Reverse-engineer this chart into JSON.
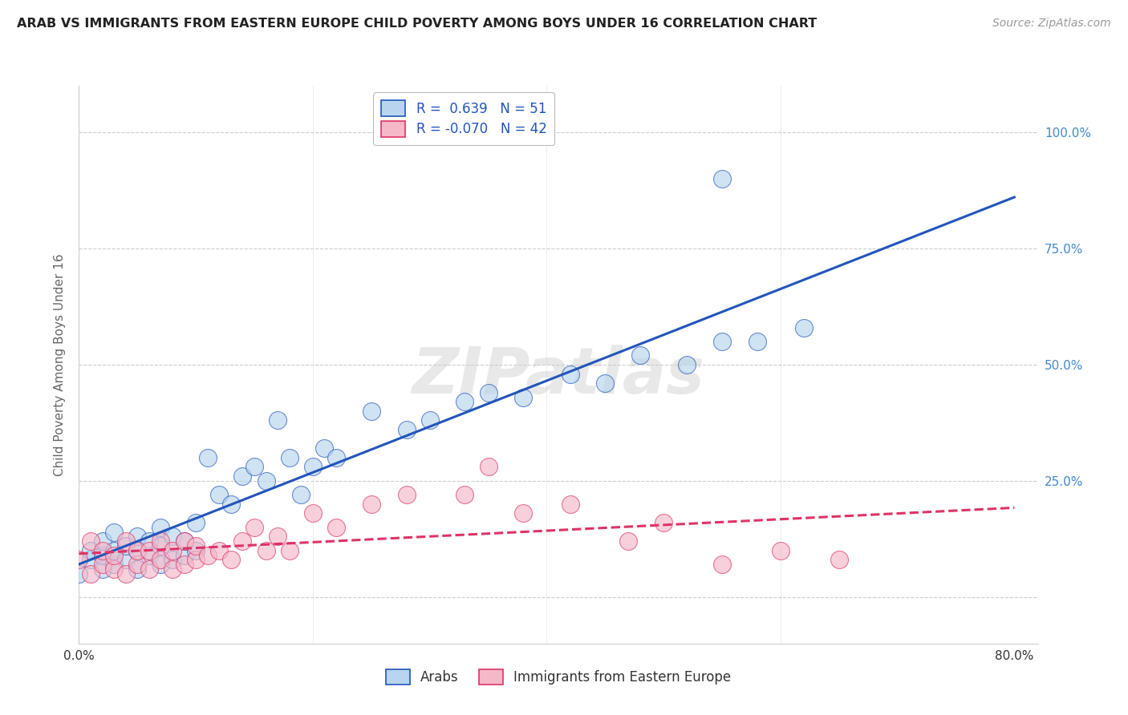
{
  "title": "ARAB VS IMMIGRANTS FROM EASTERN EUROPE CHILD POVERTY AMONG BOYS UNDER 16 CORRELATION CHART",
  "source": "Source: ZipAtlas.com",
  "ylabel": "Child Poverty Among Boys Under 16",
  "xlim": [
    0.0,
    0.82
  ],
  "ylim": [
    -0.1,
    1.1
  ],
  "xtick_positions": [
    0.0,
    0.2,
    0.4,
    0.6,
    0.8
  ],
  "xticklabels": [
    "0.0%",
    "",
    "",
    "",
    "80.0%"
  ],
  "ytick_positions": [
    0.0,
    0.25,
    0.5,
    0.75,
    1.0
  ],
  "ytick_labels": [
    "",
    "25.0%",
    "50.0%",
    "75.0%",
    "100.0%"
  ],
  "background_color": "#ffffff",
  "grid_color": "#c8c8c8",
  "watermark": "ZIPatlas",
  "series": [
    {
      "name": "Arabs",
      "R": 0.639,
      "N": 51,
      "color": "#b8d4ee",
      "line_color": "#2255bb",
      "line_style": "-",
      "x": [
        0.0,
        0.01,
        0.01,
        0.02,
        0.02,
        0.02,
        0.03,
        0.03,
        0.03,
        0.04,
        0.04,
        0.05,
        0.05,
        0.05,
        0.06,
        0.06,
        0.07,
        0.07,
        0.07,
        0.08,
        0.08,
        0.09,
        0.09,
        0.1,
        0.1,
        0.11,
        0.12,
        0.13,
        0.14,
        0.15,
        0.16,
        0.17,
        0.18,
        0.19,
        0.2,
        0.21,
        0.22,
        0.25,
        0.28,
        0.3,
        0.33,
        0.35,
        0.38,
        0.42,
        0.45,
        0.48,
        0.52,
        0.55,
        0.58,
        0.62,
        0.55
      ],
      "y": [
        0.05,
        0.08,
        0.1,
        0.06,
        0.09,
        0.12,
        0.07,
        0.1,
        0.14,
        0.08,
        0.11,
        0.06,
        0.1,
        0.13,
        0.09,
        0.12,
        0.07,
        0.11,
        0.15,
        0.08,
        0.13,
        0.09,
        0.12,
        0.1,
        0.16,
        0.3,
        0.22,
        0.2,
        0.26,
        0.28,
        0.25,
        0.38,
        0.3,
        0.22,
        0.28,
        0.32,
        0.3,
        0.4,
        0.36,
        0.38,
        0.42,
        0.44,
        0.43,
        0.48,
        0.46,
        0.52,
        0.5,
        0.55,
        0.55,
        0.58,
        0.9
      ]
    },
    {
      "name": "Immigrants from Eastern Europe",
      "R": -0.07,
      "N": 42,
      "color": "#f5b8c8",
      "line_color": "#dd3366",
      "line_style": "--",
      "x": [
        0.0,
        0.01,
        0.01,
        0.02,
        0.02,
        0.03,
        0.03,
        0.04,
        0.04,
        0.05,
        0.05,
        0.06,
        0.06,
        0.07,
        0.07,
        0.08,
        0.08,
        0.09,
        0.09,
        0.1,
        0.1,
        0.11,
        0.12,
        0.13,
        0.14,
        0.15,
        0.16,
        0.17,
        0.18,
        0.2,
        0.22,
        0.25,
        0.28,
        0.33,
        0.35,
        0.38,
        0.42,
        0.47,
        0.5,
        0.55,
        0.6,
        0.65
      ],
      "y": [
        0.08,
        0.05,
        0.12,
        0.07,
        0.1,
        0.06,
        0.09,
        0.05,
        0.12,
        0.07,
        0.1,
        0.06,
        0.1,
        0.08,
        0.12,
        0.06,
        0.1,
        0.07,
        0.12,
        0.08,
        0.11,
        0.09,
        0.1,
        0.08,
        0.12,
        0.15,
        0.1,
        0.13,
        0.1,
        0.18,
        0.15,
        0.2,
        0.22,
        0.22,
        0.28,
        0.18,
        0.2,
        0.12,
        0.16,
        0.07,
        0.1,
        0.08
      ]
    }
  ],
  "title_color": "#222222",
  "axis_label_color": "#666666",
  "ytick_color": "#4488cc",
  "xtick_color": "#333333"
}
